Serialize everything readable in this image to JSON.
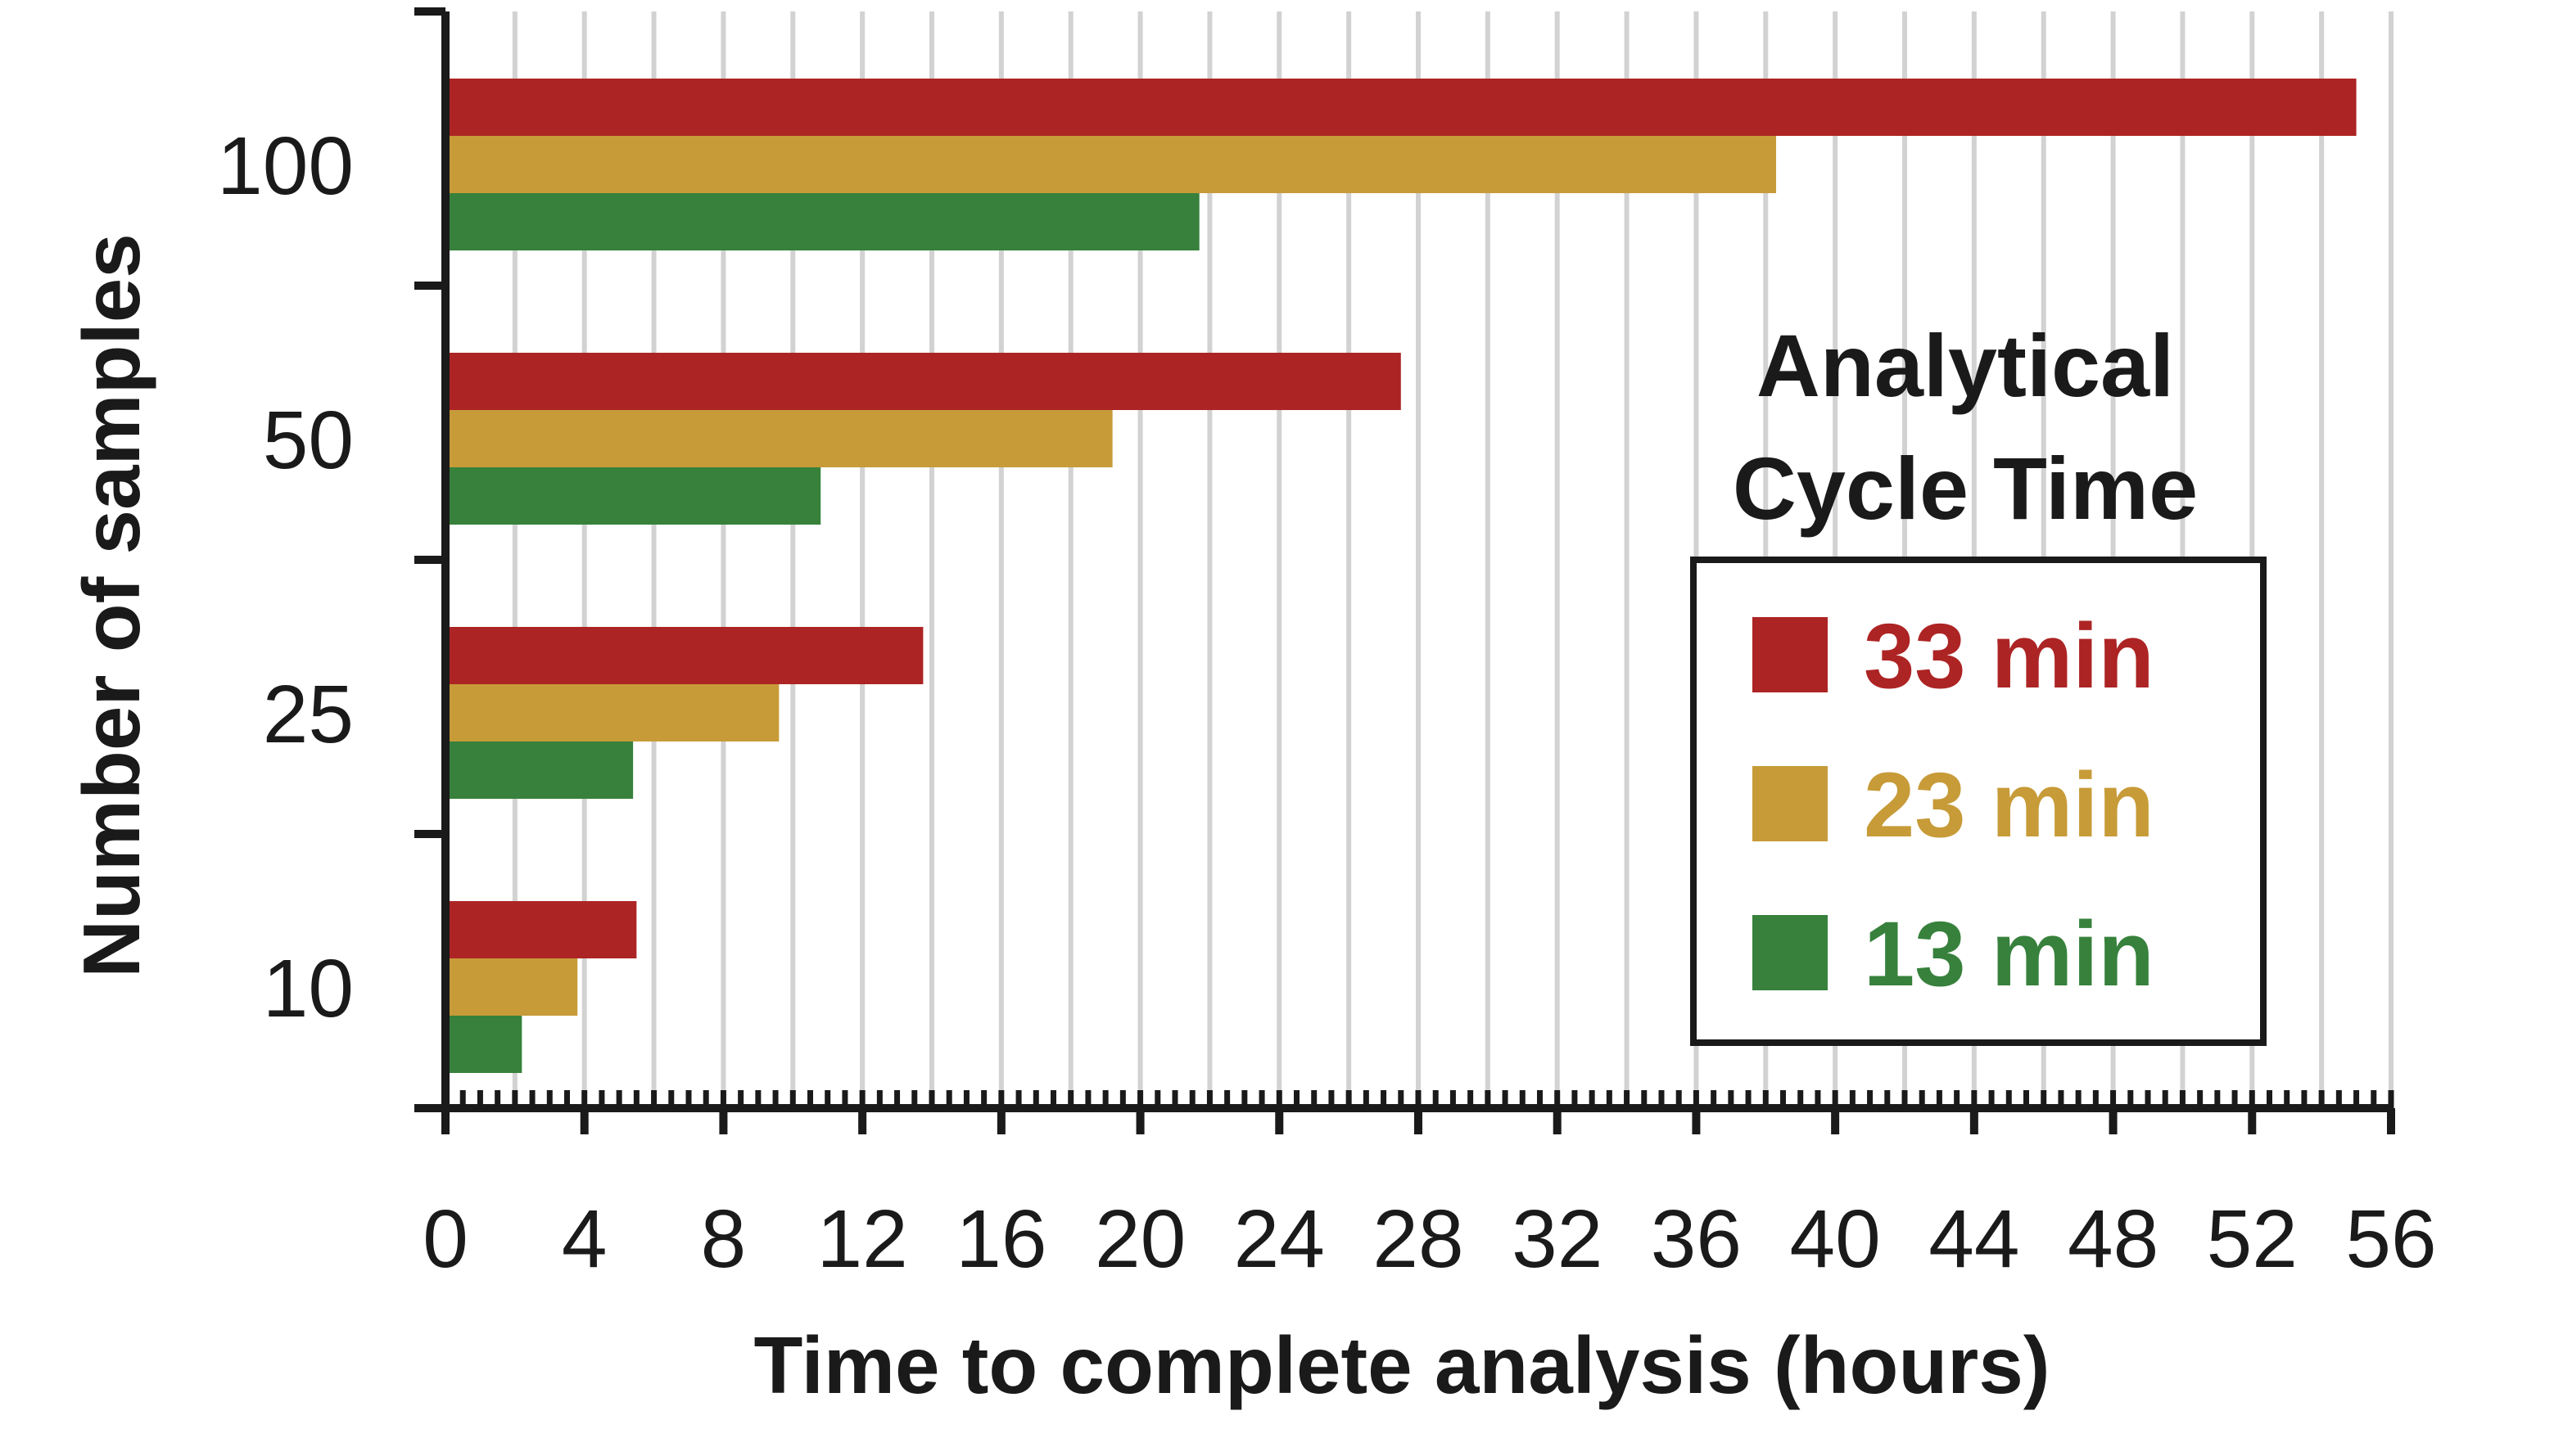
{
  "chart_data": {
    "type": "bar",
    "orientation": "horizontal",
    "categories": [
      "100",
      "50",
      "25",
      "10"
    ],
    "series": [
      {
        "name": "33 min",
        "color": "#ad2424",
        "values": [
          55,
          27.5,
          13.75,
          5.5
        ]
      },
      {
        "name": "23 min",
        "color": "#c79b38",
        "values": [
          38.3,
          19.2,
          9.6,
          3.8
        ]
      },
      {
        "name": "13 min",
        "color": "#37813c",
        "values": [
          21.7,
          10.8,
          5.4,
          2.2
        ]
      }
    ],
    "xlabel": "Time to complete analysis (hours)",
    "ylabel": "Number of samples",
    "xlim": [
      0,
      56
    ],
    "xticks": [
      "0",
      "4",
      "8",
      "12",
      "16",
      "20",
      "24",
      "28",
      "32",
      "36",
      "40",
      "44",
      "48",
      "52",
      "56"
    ],
    "grid": "vertical",
    "legend": {
      "title_lines": [
        "Analytical",
        "Cycle Time"
      ],
      "placement": "right"
    }
  }
}
